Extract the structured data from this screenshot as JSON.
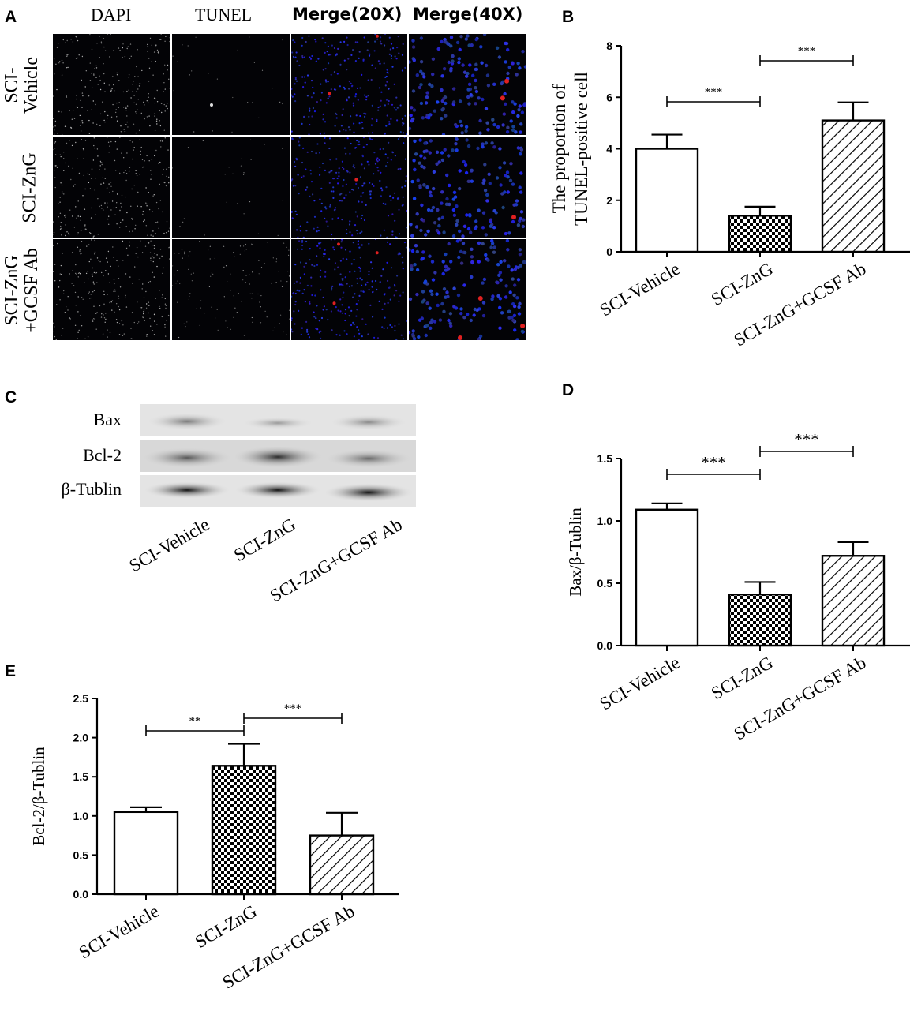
{
  "panels": {
    "A": "A",
    "B": "B",
    "C": "C",
    "D": "D",
    "E": "E"
  },
  "panel_a": {
    "columns": [
      "DAPI",
      "TUNEL",
      "Merge(20X)",
      "Merge(40X)"
    ],
    "rows": [
      [
        "SCI-",
        "Vehicle"
      ],
      [
        "SCI-ZnG"
      ],
      [
        "SCI-ZnG",
        "+GCSF Ab"
      ]
    ]
  },
  "panel_c": {
    "bands": [
      "Bax",
      "Bcl-2",
      "β-Tublin"
    ],
    "lanes": [
      "SCI-Vehicle",
      "SCI-ZnG",
      "SCI-ZnG+GCSF Ab"
    ]
  },
  "chart_data": [
    {
      "panel": "B",
      "type": "bar",
      "categories": [
        "SCI-Vehicle",
        "SCI-ZnG",
        "SCI-ZnG+GCSF Ab"
      ],
      "values": [
        4.0,
        1.4,
        5.1
      ],
      "errors": [
        0.55,
        0.35,
        0.7
      ],
      "patterns": [
        "none",
        "checker",
        "hatch"
      ],
      "ylabel": [
        "The proportion of",
        "TUNEL-positive cell"
      ],
      "ylim": [
        0,
        8
      ],
      "yticks": [
        "0",
        "2",
        "4",
        "6",
        "8"
      ],
      "significance": [
        {
          "from": 0,
          "to": 1,
          "label": "***"
        },
        {
          "from": 1,
          "to": 2,
          "label": "***"
        }
      ]
    },
    {
      "panel": "D",
      "type": "bar",
      "categories": [
        "SCI-Vehicle",
        "SCI-ZnG",
        "SCI-ZnG+GCSF Ab"
      ],
      "values": [
        1.09,
        0.41,
        0.72
      ],
      "errors": [
        0.05,
        0.1,
        0.11
      ],
      "patterns": [
        "none",
        "checker",
        "hatch"
      ],
      "ylabel": [
        "Bax/β-Tublin"
      ],
      "ylim": [
        0,
        1.5
      ],
      "yticks": [
        "0.0",
        "0.5",
        "1.0",
        "1.5"
      ],
      "significance": [
        {
          "from": 0,
          "to": 1,
          "label": "***"
        },
        {
          "from": 1,
          "to": 2,
          "label": "***"
        }
      ]
    },
    {
      "panel": "E",
      "type": "bar",
      "categories": [
        "SCI-Vehicle",
        "SCI-ZnG",
        "SCI-ZnG+GCSF Ab"
      ],
      "values": [
        1.05,
        1.64,
        0.75
      ],
      "errors": [
        0.06,
        0.28,
        0.29
      ],
      "patterns": [
        "none",
        "checker",
        "hatch"
      ],
      "ylabel": [
        "Bcl-2/β-Tublin"
      ],
      "ylim": [
        0,
        2.5
      ],
      "yticks": [
        "0.0",
        "0.5",
        "1.0",
        "1.5",
        "2.0",
        "2.5"
      ],
      "significance": [
        {
          "from": 0,
          "to": 1,
          "label": "**"
        },
        {
          "from": 1,
          "to": 2,
          "label": "***"
        }
      ]
    }
  ]
}
